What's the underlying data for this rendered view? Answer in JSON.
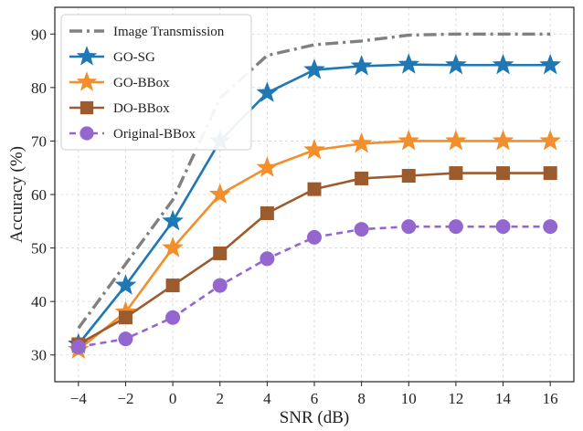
{
  "chart_data": {
    "type": "line",
    "xlabel": "SNR (dB)",
    "ylabel": "Accuracy (%)",
    "x": [
      -4,
      -2,
      0,
      2,
      4,
      6,
      8,
      10,
      12,
      14,
      16
    ],
    "xticks": [
      -4,
      -2,
      0,
      2,
      4,
      6,
      8,
      10,
      12,
      14,
      16
    ],
    "yticks": [
      30,
      40,
      50,
      60,
      70,
      80,
      90
    ],
    "xlim": [
      -5,
      17
    ],
    "ylim": [
      25,
      95
    ],
    "grid": true,
    "legend_position": "top-left",
    "series": [
      {
        "name": "Image Transmission",
        "color": "#808080",
        "line_style": "dash-dot",
        "marker": "none",
        "values": [
          35,
          47,
          59,
          78,
          86,
          88,
          88.7,
          89.8,
          90,
          90,
          90
        ]
      },
      {
        "name": "GO-SG",
        "color": "#1f77b4",
        "line_style": "solid",
        "marker": "star",
        "values": [
          32,
          43,
          55,
          70,
          79,
          83.3,
          84,
          84.3,
          84.2,
          84.2,
          84.2
        ]
      },
      {
        "name": "GO-BBox",
        "color": "#f28e2b",
        "line_style": "solid",
        "marker": "star",
        "values": [
          31,
          38,
          50,
          60,
          65,
          68.3,
          69.5,
          70,
          70,
          70,
          70
        ]
      },
      {
        "name": "DO-BBox",
        "color": "#9c5b2c",
        "line_style": "solid",
        "marker": "square",
        "values": [
          32,
          37,
          43,
          49,
          56.5,
          61,
          63,
          63.5,
          64,
          64,
          64
        ]
      },
      {
        "name": "Original-BBox",
        "color": "#9467cf",
        "line_style": "dashed",
        "marker": "circle",
        "values": [
          31.5,
          33,
          37,
          43,
          48,
          52,
          53.5,
          54,
          54,
          54,
          54
        ]
      }
    ]
  }
}
